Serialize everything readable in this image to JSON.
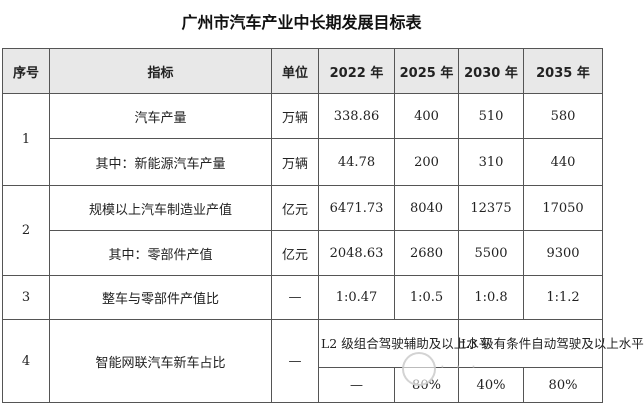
{
  "title": "广州市汽车产业中长期发展目标表",
  "headers": [
    "序号",
    "指标",
    "单位",
    "2022 年",
    "2025 年",
    "2030 年",
    "2035 年"
  ],
  "rows": {
    "r1": {
      "no": "1",
      "indicator": "汽车产量",
      "unit": "万辆",
      "y2022": "338.86",
      "y2025": "400",
      "y2030": "510",
      "y2035": "580"
    },
    "r2": {
      "indicator": "其中：新能源汽车产量",
      "unit": "万辆",
      "y2022": "44.78",
      "y2025": "200",
      "y2030": "310",
      "y2035": "440"
    },
    "r3": {
      "no": "2",
      "indicator": "规模以上汽车制造业产值",
      "unit": "亿元",
      "y2022": "6471.73",
      "y2025": "8040",
      "y2030": "12375",
      "y2035": "17050"
    },
    "r4": {
      "indicator": "其中：零部件产值",
      "unit": "亿元",
      "y2022": "2048.63",
      "y2025": "2680",
      "y2030": "5500",
      "y2035": "9300"
    },
    "r5": {
      "no": "3",
      "indicator": "整车与零部件产值比",
      "unit": "—",
      "y2022": "1:0.47",
      "y2025": "1:0.5",
      "y2030": "1:0.8",
      "y2035": "1:1.2"
    },
    "r6": {
      "no": "4",
      "indicator": "智能网联汽车新车占比",
      "unit": "—",
      "note_2025": "L2 级组合驾驶辅助及以上水平",
      "note_2030": "L3 级有条件自动驾驶及以上水平"
    },
    "r7": {
      "y2022": "—",
      "y2025": "80%",
      "y2030": "40%",
      "y2035": "80%"
    }
  }
}
